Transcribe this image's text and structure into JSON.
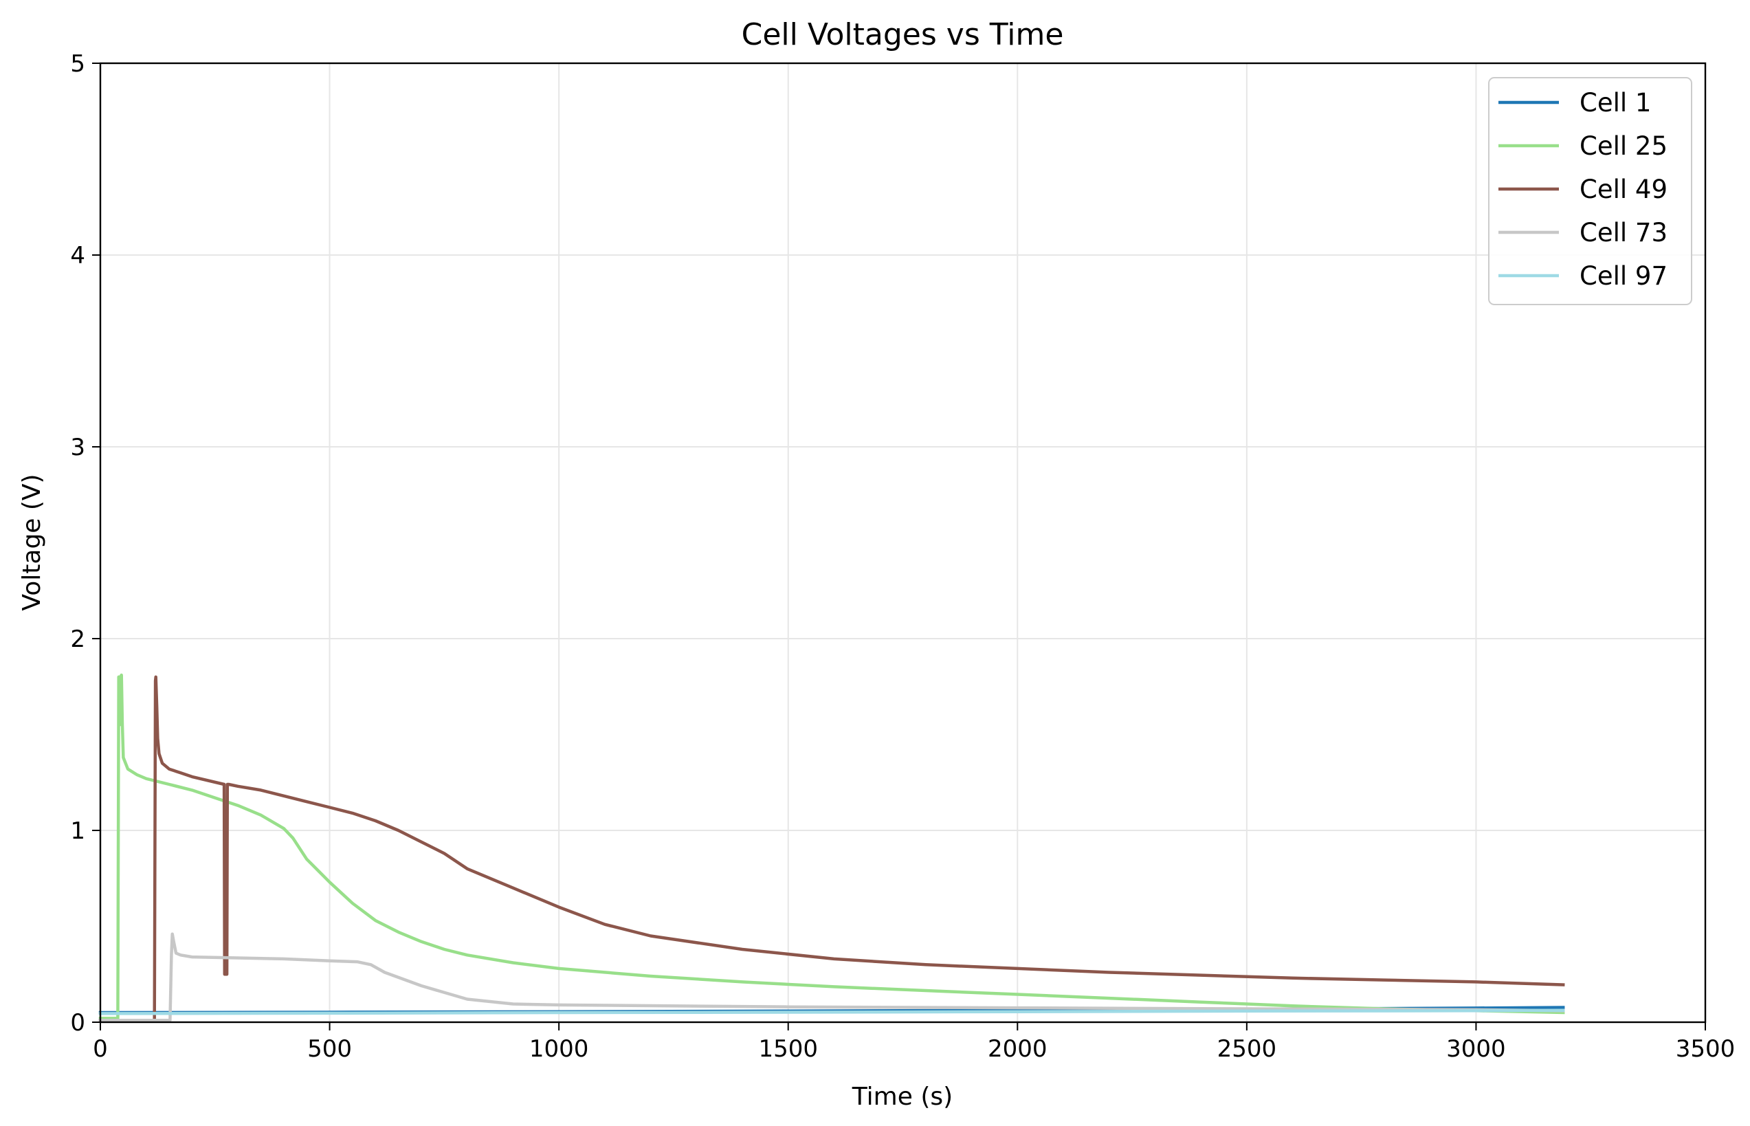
{
  "chart_data": {
    "type": "line",
    "title": "Cell Voltages vs Time",
    "xlabel": "Time (s)",
    "ylabel": "Voltage (V)",
    "xlim": [
      0,
      3500
    ],
    "ylim": [
      0,
      5
    ],
    "xticks": [
      0,
      500,
      1000,
      1500,
      2000,
      2500,
      3000,
      3500
    ],
    "yticks": [
      0,
      1,
      2,
      3,
      4,
      5
    ],
    "grid": true,
    "legend_position": "top-right",
    "series": [
      {
        "name": "Cell 1",
        "color": "#1f77b4",
        "x": [
          0,
          500,
          1000,
          1500,
          2000,
          2500,
          3000,
          3190
        ],
        "y": [
          0.05,
          0.052,
          0.055,
          0.058,
          0.062,
          0.068,
          0.074,
          0.077
        ]
      },
      {
        "name": "Cell 25",
        "color": "#98df8a",
        "x": [
          0,
          38,
          40,
          41,
          42,
          44,
          46,
          48,
          50,
          60,
          80,
          100,
          150,
          200,
          250,
          300,
          350,
          400,
          420,
          450,
          500,
          550,
          600,
          650,
          700,
          750,
          800,
          900,
          1000,
          1200,
          1400,
          1600,
          1800,
          2000,
          2200,
          2400,
          2600,
          2800,
          3000,
          3190
        ],
        "y": [
          0.02,
          0.02,
          1.8,
          1.8,
          1.55,
          1.8,
          1.81,
          1.55,
          1.38,
          1.32,
          1.29,
          1.27,
          1.24,
          1.21,
          1.17,
          1.13,
          1.08,
          1.01,
          0.96,
          0.85,
          0.73,
          0.62,
          0.53,
          0.47,
          0.42,
          0.38,
          0.35,
          0.31,
          0.28,
          0.24,
          0.21,
          0.185,
          0.165,
          0.145,
          0.125,
          0.105,
          0.085,
          0.07,
          0.06,
          0.05
        ]
      },
      {
        "name": "Cell 49",
        "color": "#8c564b",
        "x": [
          0,
          118,
          120,
          121,
          123,
          125,
          128,
          135,
          150,
          175,
          200,
          270,
          271,
          276,
          277,
          280,
          300,
          350,
          400,
          450,
          500,
          550,
          600,
          650,
          700,
          750,
          800,
          900,
          1000,
          1100,
          1200,
          1400,
          1600,
          1800,
          2000,
          2200,
          2400,
          2600,
          2800,
          3000,
          3190
        ],
        "y": [
          0.01,
          0.01,
          1.78,
          1.8,
          1.65,
          1.48,
          1.4,
          1.35,
          1.32,
          1.3,
          1.28,
          1.24,
          0.25,
          0.25,
          1.24,
          1.24,
          1.23,
          1.21,
          1.18,
          1.15,
          1.12,
          1.09,
          1.05,
          1.0,
          0.94,
          0.88,
          0.8,
          0.7,
          0.6,
          0.51,
          0.45,
          0.38,
          0.33,
          0.3,
          0.28,
          0.26,
          0.245,
          0.23,
          0.22,
          0.21,
          0.195
        ]
      },
      {
        "name": "Cell 73",
        "color": "#c7c7c7",
        "x": [
          0,
          152,
          155,
          157,
          160,
          165,
          175,
          200,
          300,
          400,
          500,
          560,
          590,
          620,
          700,
          800,
          900,
          1000,
          1500,
          2000,
          2500,
          3000,
          3190
        ],
        "y": [
          0.01,
          0.01,
          0.35,
          0.46,
          0.42,
          0.36,
          0.35,
          0.34,
          0.335,
          0.33,
          0.32,
          0.315,
          0.3,
          0.26,
          0.19,
          0.12,
          0.095,
          0.09,
          0.08,
          0.075,
          0.07,
          0.065,
          0.06
        ]
      },
      {
        "name": "Cell 97",
        "color": "#9edae5",
        "x": [
          0,
          500,
          1000,
          1500,
          2000,
          2500,
          3000,
          3190
        ],
        "y": [
          0.045,
          0.047,
          0.05,
          0.052,
          0.055,
          0.058,
          0.06,
          0.062
        ]
      }
    ]
  }
}
